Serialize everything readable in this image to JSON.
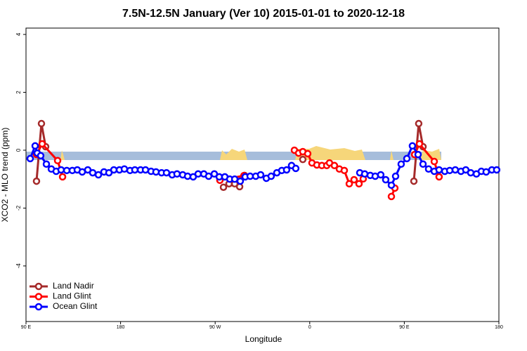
{
  "chart_data": {
    "type": "line",
    "title": "7.5N-12.5N January (Ver 10)   2015-01-01 to 2020-12-18",
    "xlabel": "Longitude",
    "ylabel": "XCO2 - MLO trend (ppm)",
    "xlim": [
      90,
      540
    ],
    "xticks": [
      {
        "value": 90,
        "label": "90 E"
      },
      180,
      {
        "value": 270,
        "label": "90 W"
      },
      {
        "value": 360,
        "label": "0"
      },
      {
        "value": 450,
        "label": "90 E"
      },
      {
        "value": 540,
        "label": "180"
      }
    ],
    "ylim": [
      -5.92,
      4.22
    ],
    "yticks": [
      -4,
      -2,
      0,
      2,
      4
    ],
    "legend": "bottom-left",
    "series": [
      {
        "name": "Land Nadir",
        "color": "#a52a2a",
        "x": [
          100.0,
          104.7,
          108.7,
          null,
          277.9,
          283.2,
          288.6,
          293.3,
          297.9,
          null,
          353.4,
          null,
          459.1,
          463.7,
          467.8
        ],
        "values": [
          -1.07,
          0.92,
          0.12,
          null,
          -1.28,
          -1.16,
          -1.16,
          -1.26,
          -0.87,
          null,
          -0.32,
          null,
          -1.07,
          0.92,
          0.12
        ]
      },
      {
        "name": "Land Glint",
        "color": "#ff0000",
        "x": [
          100.0,
          105.4,
          120.1,
          124.8,
          null,
          274.5,
          297.3,
          null,
          345.4,
          349.4,
          353.4,
          358.1,
          362.1,
          366.8,
          371.5,
          376.2,
          378.8,
          383.5,
          388.2,
          392.9,
          397.6,
          402.2,
          406.9,
          410.9,
          null,
          437.7,
          441.0,
          null,
          459.8,
          464.4,
          478.5,
          483.1
        ],
        "values": [
          -0.15,
          0.22,
          -0.36,
          -0.92,
          null,
          -1.04,
          -0.88,
          null,
          0.0,
          -0.1,
          -0.05,
          -0.12,
          -0.44,
          -0.51,
          -0.53,
          -0.53,
          -0.44,
          -0.53,
          -0.65,
          -0.7,
          -1.16,
          -1.02,
          -1.16,
          -0.99,
          null,
          -1.6,
          -1.31,
          null,
          -0.15,
          0.22,
          -0.39,
          -0.92
        ]
      },
      {
        "name": "Ocean Glint",
        "color": "#0000ff",
        "x": [
          94.0,
          98.7,
          100.7,
          104.0,
          109.4,
          114.1,
          118.7,
          123.4,
          128.8,
          134.1,
          138.8,
          143.5,
          148.8,
          153.5,
          158.9,
          164.2,
          168.9,
          173.6,
          178.9,
          183.6,
          189.0,
          193.6,
          199.0,
          203.7,
          209.0,
          213.7,
          219.0,
          223.7,
          229.1,
          233.7,
          239.1,
          243.8,
          249.1,
          253.8,
          259.2,
          263.8,
          269.2,
          273.9,
          279.2,
          283.9,
          288.6,
          293.9,
          298.6,
          303.3,
          308.6,
          313.3,
          318.7,
          323.3,
          328.7,
          333.4,
          338.0,
          342.7,
          346.7,
          null,
          407.6,
          412.3,
          417.6,
          422.3,
          427.6,
          432.3,
          437.7,
          441.7,
          447.0,
          452.4,
          457.7,
          463.1,
          467.8,
          473.1,
          478.5,
          483.1,
          488.5,
          493.2,
          498.5,
          503.9,
          508.5,
          513.2,
          518.6,
          523.3,
          527.9,
          533.3,
          537.9
        ],
        "values": [
          -0.29,
          0.15,
          -0.1,
          -0.19,
          -0.48,
          -0.65,
          -0.73,
          -0.68,
          -0.7,
          -0.7,
          -0.68,
          -0.75,
          -0.68,
          -0.78,
          -0.85,
          -0.75,
          -0.78,
          -0.68,
          -0.68,
          -0.65,
          -0.7,
          -0.68,
          -0.68,
          -0.68,
          -0.73,
          -0.75,
          -0.78,
          -0.78,
          -0.85,
          -0.82,
          -0.85,
          -0.9,
          -0.92,
          -0.82,
          -0.82,
          -0.9,
          -0.82,
          -0.92,
          -0.92,
          -1.0,
          -1.0,
          -1.07,
          -0.92,
          -0.9,
          -0.9,
          -0.85,
          -0.97,
          -0.9,
          -0.78,
          -0.7,
          -0.68,
          -0.53,
          -0.63,
          null,
          -0.78,
          -0.82,
          -0.87,
          -0.9,
          -0.85,
          -1.02,
          -1.21,
          -0.9,
          -0.48,
          -0.29,
          0.15,
          -0.15,
          -0.48,
          -0.65,
          -0.73,
          -0.68,
          -0.73,
          -0.7,
          -0.68,
          -0.73,
          -0.68,
          -0.78,
          -0.82,
          -0.73,
          -0.75,
          -0.68,
          -0.68
        ]
      }
    ]
  }
}
